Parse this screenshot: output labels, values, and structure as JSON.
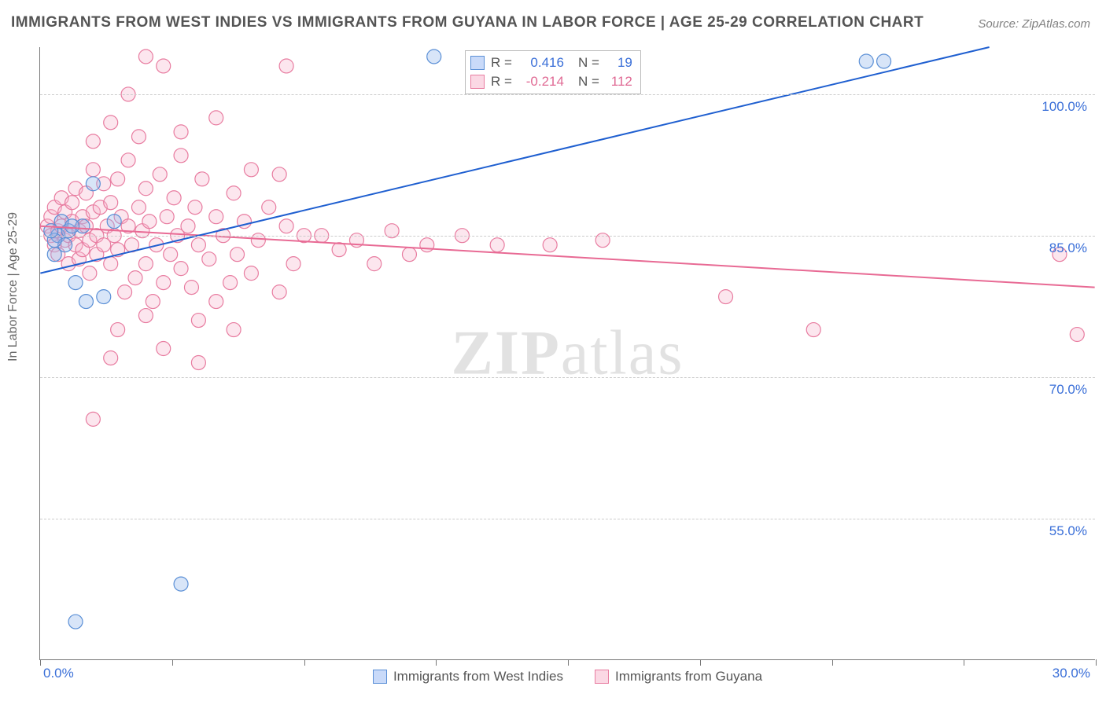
{
  "title": "IMMIGRANTS FROM WEST INDIES VS IMMIGRANTS FROM GUYANA IN LABOR FORCE | AGE 25-29 CORRELATION CHART",
  "source_label": "Source:",
  "source_site": "ZipAtlas.com",
  "y_axis_title": "In Labor Force | Age 25-29",
  "watermark_bold": "ZIP",
  "watermark_light": "atlas",
  "chart": {
    "type": "scatter",
    "x_min": 0.0,
    "x_max": 30.0,
    "y_min": 40.0,
    "y_max": 105.0,
    "x_ticks": [
      0.0,
      3.75,
      7.5,
      11.25,
      15.0,
      18.75,
      22.5,
      26.25,
      30.0
    ],
    "x_tick_labels": {
      "0": "0.0%",
      "8": "30.0%"
    },
    "y_gridlines": [
      55.0,
      70.0,
      85.0,
      100.0
    ],
    "y_tick_labels": [
      "55.0%",
      "70.0%",
      "85.0%",
      "100.0%"
    ],
    "background_color": "#ffffff",
    "grid_color": "#cccccc",
    "marker_radius": 9,
    "marker_opacity": 0.35,
    "line_width": 2,
    "series": [
      {
        "name": "Immigrants from West Indies",
        "color_fill": "#8fb5ec",
        "color_stroke": "#5a8fd6",
        "line_color": "#1f5fd0",
        "R": "0.416",
        "N": "19",
        "trend": {
          "x1": 0.0,
          "y1": 81.0,
          "x2": 27.0,
          "y2": 105.0
        },
        "points": [
          [
            0.5,
            85.0
          ],
          [
            0.6,
            86.5
          ],
          [
            0.7,
            84.0
          ],
          [
            0.8,
            85.5
          ],
          [
            1.0,
            80.0
          ],
          [
            1.2,
            86.0
          ],
          [
            1.3,
            78.0
          ],
          [
            1.5,
            90.5
          ],
          [
            0.4,
            84.5
          ],
          [
            0.9,
            86.0
          ],
          [
            1.8,
            78.5
          ],
          [
            2.1,
            86.5
          ],
          [
            1.0,
            44.0
          ],
          [
            4.0,
            48.0
          ],
          [
            11.2,
            104.0
          ],
          [
            23.5,
            103.5
          ],
          [
            24.0,
            103.5
          ],
          [
            0.3,
            85.5
          ],
          [
            0.4,
            83.0
          ]
        ]
      },
      {
        "name": "Immigrants from Guyana",
        "color_fill": "#f7b8cd",
        "color_stroke": "#e87ca0",
        "line_color": "#e86a94",
        "R": "-0.214",
        "N": "112",
        "trend": {
          "x1": 0.0,
          "y1": 86.0,
          "x2": 30.0,
          "y2": 79.5
        },
        "points": [
          [
            0.2,
            86.0
          ],
          [
            0.3,
            85.0
          ],
          [
            0.3,
            87.0
          ],
          [
            0.4,
            84.0
          ],
          [
            0.4,
            88.0
          ],
          [
            0.5,
            85.5
          ],
          [
            0.5,
            83.0
          ],
          [
            0.6,
            86.0
          ],
          [
            0.6,
            89.0
          ],
          [
            0.7,
            84.5
          ],
          [
            0.7,
            87.5
          ],
          [
            0.8,
            85.0
          ],
          [
            0.8,
            82.0
          ],
          [
            0.9,
            86.5
          ],
          [
            0.9,
            88.5
          ],
          [
            1.0,
            84.0
          ],
          [
            1.0,
            90.0
          ],
          [
            1.1,
            85.5
          ],
          [
            1.1,
            82.5
          ],
          [
            1.2,
            87.0
          ],
          [
            1.2,
            83.5
          ],
          [
            1.3,
            86.0
          ],
          [
            1.3,
            89.5
          ],
          [
            1.4,
            84.5
          ],
          [
            1.4,
            81.0
          ],
          [
            1.5,
            87.5
          ],
          [
            1.5,
            92.0
          ],
          [
            1.6,
            85.0
          ],
          [
            1.6,
            83.0
          ],
          [
            1.7,
            88.0
          ],
          [
            1.8,
            84.0
          ],
          [
            1.8,
            90.5
          ],
          [
            1.9,
            86.0
          ],
          [
            2.0,
            82.0
          ],
          [
            2.0,
            88.5
          ],
          [
            2.1,
            85.0
          ],
          [
            2.2,
            91.0
          ],
          [
            2.2,
            83.5
          ],
          [
            2.3,
            87.0
          ],
          [
            2.4,
            79.0
          ],
          [
            2.5,
            86.0
          ],
          [
            2.5,
            93.0
          ],
          [
            2.6,
            84.0
          ],
          [
            2.7,
            80.5
          ],
          [
            2.8,
            88.0
          ],
          [
            2.9,
            85.5
          ],
          [
            3.0,
            82.0
          ],
          [
            3.0,
            90.0
          ],
          [
            3.1,
            86.5
          ],
          [
            3.2,
            78.0
          ],
          [
            3.3,
            84.0
          ],
          [
            3.4,
            91.5
          ],
          [
            3.5,
            80.0
          ],
          [
            3.6,
            87.0
          ],
          [
            3.7,
            83.0
          ],
          [
            3.8,
            89.0
          ],
          [
            3.9,
            85.0
          ],
          [
            4.0,
            81.5
          ],
          [
            4.0,
            93.5
          ],
          [
            4.2,
            86.0
          ],
          [
            4.3,
            79.5
          ],
          [
            4.4,
            88.0
          ],
          [
            4.5,
            84.0
          ],
          [
            4.6,
            91.0
          ],
          [
            4.8,
            82.5
          ],
          [
            5.0,
            87.0
          ],
          [
            5.0,
            78.0
          ],
          [
            5.2,
            85.0
          ],
          [
            5.4,
            80.0
          ],
          [
            5.5,
            89.5
          ],
          [
            5.6,
            83.0
          ],
          [
            5.8,
            86.5
          ],
          [
            6.0,
            81.0
          ],
          [
            6.0,
            92.0
          ],
          [
            6.2,
            84.5
          ],
          [
            6.5,
            88.0
          ],
          [
            6.8,
            79.0
          ],
          [
            7.0,
            86.0
          ],
          [
            7.0,
            103.0
          ],
          [
            7.2,
            82.0
          ],
          [
            7.5,
            85.0
          ],
          [
            8.0,
            85.0
          ],
          [
            8.5,
            83.5
          ],
          [
            9.0,
            84.5
          ],
          [
            9.5,
            82.0
          ],
          [
            10.0,
            85.5
          ],
          [
            10.5,
            83.0
          ],
          [
            11.0,
            84.0
          ],
          [
            12.0,
            85.0
          ],
          [
            13.0,
            84.0
          ],
          [
            14.5,
            84.0
          ],
          [
            16.0,
            84.5
          ],
          [
            19.5,
            78.5
          ],
          [
            22.0,
            75.0
          ],
          [
            29.0,
            83.0
          ],
          [
            29.5,
            74.5
          ],
          [
            2.0,
            97.0
          ],
          [
            2.5,
            100.0
          ],
          [
            3.0,
            104.0
          ],
          [
            3.5,
            103.0
          ],
          [
            1.5,
            95.0
          ],
          [
            2.8,
            95.5
          ],
          [
            4.0,
            96.0
          ],
          [
            5.0,
            97.5
          ],
          [
            2.0,
            72.0
          ],
          [
            3.5,
            73.0
          ],
          [
            4.5,
            71.5
          ],
          [
            5.5,
            75.0
          ],
          [
            1.5,
            65.5
          ],
          [
            6.8,
            91.5
          ],
          [
            4.5,
            76.0
          ],
          [
            3.0,
            76.5
          ],
          [
            2.2,
            75.0
          ]
        ]
      }
    ]
  },
  "stats_labels": {
    "R": "R =",
    "N": "N ="
  },
  "legend": [
    {
      "swatch": "blue",
      "label": "Immigrants from West Indies"
    },
    {
      "swatch": "pink",
      "label": "Immigrants from Guyana"
    }
  ]
}
